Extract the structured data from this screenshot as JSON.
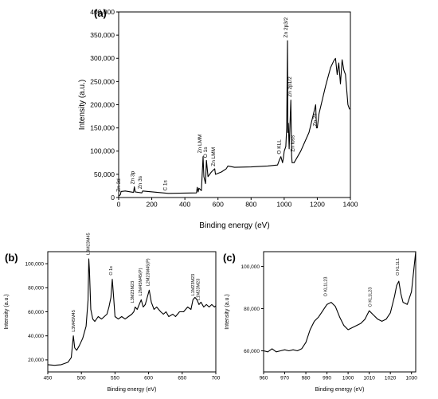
{
  "chart_data": [
    {
      "panel": "(a)",
      "type": "line",
      "xlabel": "Binding energy (eV)",
      "ylabel": "Intensity (a.u.)",
      "xlim": [
        0,
        1400
      ],
      "ylim": [
        0,
        400000
      ],
      "xticks": [
        "0",
        "200",
        "400",
        "600",
        "800",
        "1000",
        "1200",
        "1400"
      ],
      "yticks": [
        "0",
        "50,000",
        "100,000",
        "150,000",
        "200,000",
        "250,000",
        "300,000",
        "350,000",
        "400,000"
      ],
      "x": [
        0,
        10,
        15,
        40,
        90,
        95,
        100,
        140,
        145,
        300,
        470,
        475,
        480,
        485,
        500,
        510,
        515,
        525,
        530,
        540,
        560,
        580,
        585,
        620,
        650,
        660,
        700,
        800,
        900,
        960,
        970,
        980,
        990,
        995,
        1000,
        1010,
        1015,
        1020,
        1022,
        1025,
        1030,
        1040,
        1045,
        1048,
        1060,
        1100,
        1150,
        1190,
        1195,
        1200,
        1210,
        1250,
        1280,
        1300,
        1310,
        1320,
        1330,
        1340,
        1350,
        1360,
        1370,
        1385,
        1395
      ],
      "y": [
        3000,
        6000,
        13000,
        14000,
        11000,
        23000,
        12000,
        10000,
        14000,
        9000,
        10000,
        22000,
        12000,
        20000,
        15000,
        88000,
        45000,
        30000,
        80000,
        45000,
        55000,
        62000,
        50000,
        55000,
        62000,
        68000,
        65000,
        66000,
        68000,
        70000,
        80000,
        88000,
        75000,
        85000,
        100000,
        110000,
        150000,
        338000,
        140000,
        160000,
        105000,
        210000,
        90000,
        75000,
        75000,
        100000,
        140000,
        200000,
        150000,
        150000,
        180000,
        240000,
        280000,
        295000,
        300000,
        265000,
        290000,
        245000,
        297000,
        275000,
        265000,
        200000,
        190000
      ],
      "annotations": [
        {
          "text": "Zn 3d",
          "x": 10,
          "y": 9000
        },
        {
          "text": "Zn 3p",
          "x": 95,
          "y": 25000
        },
        {
          "text": "Zn 3s",
          "x": 140,
          "y": 15000
        },
        {
          "text": "C 1s",
          "x": 290,
          "y": 11000
        },
        {
          "text": "Zn LMM",
          "x": 500,
          "y": 92000
        },
        {
          "text": "O 1s",
          "x": 535,
          "y": 82000
        },
        {
          "text": "Zn LMM",
          "x": 583,
          "y": 64000
        },
        {
          "text": "O KLL",
          "x": 978,
          "y": 90000
        },
        {
          "text": "Zn 2p3/2",
          "x": 1020,
          "y": 341000
        },
        {
          "text": "Zn 2p1/2",
          "x": 1045,
          "y": 213000
        },
        {
          "text": "Zn loss",
          "x": 1062,
          "y": 95000
        },
        {
          "text": "Zn 2s",
          "x": 1195,
          "y": 150000
        }
      ]
    },
    {
      "panel": "(b)",
      "type": "line",
      "xlabel": "Binding energy (eV)",
      "ylabel": "Intensity (a.u.)",
      "xlim": [
        450,
        700
      ],
      "ylim": [
        10000,
        110000
      ],
      "xticks": [
        "450",
        "500",
        "550",
        "600",
        "650",
        "700"
      ],
      "yticks": [
        "20,000",
        "40,000",
        "60,000",
        "80,000",
        "100,000"
      ],
      "x": [
        450,
        460,
        470,
        480,
        485,
        488,
        490,
        493,
        497,
        502,
        507,
        510,
        511,
        512,
        514,
        517,
        520,
        525,
        530,
        538,
        541,
        544,
        546,
        548,
        550,
        555,
        560,
        565,
        570,
        575,
        578,
        580,
        583,
        586,
        589,
        592,
        595,
        598,
        601,
        604,
        608,
        612,
        618,
        622,
        626,
        630,
        636,
        640,
        646,
        652,
        658,
        663,
        666,
        669,
        672,
        675,
        678,
        682,
        686,
        690,
        694,
        698,
        700
      ],
      "y": [
        16000,
        15500,
        16000,
        18000,
        22000,
        40000,
        30000,
        28000,
        32000,
        38000,
        48000,
        70000,
        104000,
        95000,
        62000,
        54000,
        52000,
        56000,
        54000,
        58000,
        64000,
        72000,
        87000,
        72000,
        56000,
        54000,
        56000,
        54000,
        56000,
        58000,
        60000,
        64000,
        62000,
        66000,
        70000,
        64000,
        66000,
        72000,
        78000,
        68000,
        62000,
        64000,
        60000,
        58000,
        60000,
        56000,
        58000,
        56000,
        60000,
        60000,
        64000,
        62000,
        70000,
        72000,
        70000,
        66000,
        68000,
        64000,
        66000,
        64000,
        66000,
        64000,
        65000
      ],
      "annotations": [
        {
          "text": "L3M45M45",
          "x": 490,
          "y": 42000
        },
        {
          "text": "L3M23M45",
          "x": 512,
          "y": 106000
        },
        {
          "text": "O 1s",
          "x": 546,
          "y": 89000
        },
        {
          "text": "L3M23M23",
          "x": 578,
          "y": 66000
        },
        {
          "text": "L2M45M45(P)",
          "x": 590,
          "y": 72000
        },
        {
          "text": "L2M23M45(P)",
          "x": 601,
          "y": 80000
        },
        {
          "text": "L1M23M23",
          "x": 668,
          "y": 72000
        },
        {
          "text": "L1M23M23",
          "x": 676,
          "y": 68000
        }
      ]
    },
    {
      "panel": "(c)",
      "type": "line",
      "xlabel": "Binding energy (eV)",
      "ylabel": "Intensity (a.u.)",
      "xlim": [
        960,
        1032
      ],
      "ylim": [
        50000,
        107000
      ],
      "xticks": [
        "960",
        "970",
        "980",
        "990",
        "1000",
        "1010",
        "1020",
        "1030"
      ],
      "yticks": [
        "60,000",
        "80,000",
        "100,000"
      ],
      "x": [
        960,
        962,
        964,
        966,
        968,
        970,
        972,
        974,
        976,
        978,
        980,
        982,
        984,
        986,
        988,
        990,
        992,
        994,
        996,
        998,
        1000,
        1002,
        1004,
        1006,
        1008,
        1010,
        1012,
        1014,
        1016,
        1018,
        1020,
        1022,
        1023,
        1024,
        1025,
        1026,
        1028,
        1030,
        1032
      ],
      "y": [
        60000,
        59500,
        61000,
        59500,
        60000,
        60500,
        60000,
        60500,
        60000,
        61000,
        64000,
        70000,
        74000,
        76000,
        79000,
        82000,
        83000,
        81000,
        76000,
        72000,
        70000,
        71000,
        72000,
        73000,
        75000,
        79000,
        77000,
        75000,
        74000,
        75000,
        78000,
        86000,
        91000,
        93000,
        87000,
        83000,
        82000,
        88000,
        107000
      ],
      "annotations": [
        {
          "text": "O KL1L23",
          "x": 990,
          "y": 85000
        },
        {
          "text": "O KL1L23",
          "x": 1011,
          "y": 80000
        },
        {
          "text": "O KL1L1",
          "x": 1024,
          "y": 95000
        }
      ]
    }
  ]
}
